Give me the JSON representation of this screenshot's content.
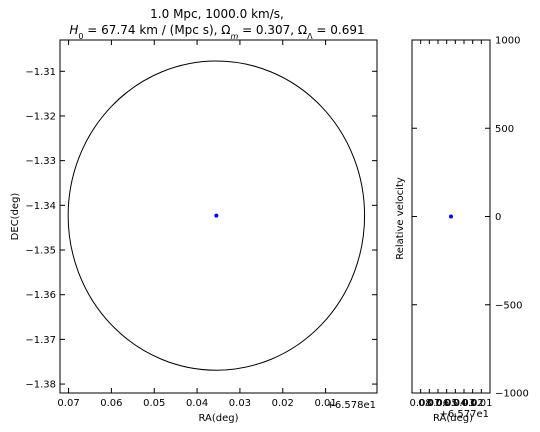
{
  "title": {
    "line1": "1.0 Mpc, 1000.0 km/s,",
    "line2_parts": [
      {
        "t": "H",
        "i": true
      },
      {
        "t": "0",
        "sub": true
      },
      {
        "t": " = 67.74 km / (Mpc s), "
      },
      {
        "t": "Ω",
        "i": false
      },
      {
        "t": "m",
        "sub": true,
        "i": true
      },
      {
        "t": " = 0.307, "
      },
      {
        "t": "Ω",
        "i": false
      },
      {
        "t": "Λ",
        "sub": true
      },
      {
        "t": " = 0.691"
      }
    ]
  },
  "chart_data": [
    {
      "type": "scatter",
      "name": "sky-position",
      "xlabel": "RA(deg)",
      "ylabel": "DEC(deg)",
      "x_offset_label": "+6.578e1",
      "xlim": [
        0.072,
        -0.002
      ],
      "ylim": [
        -1.382,
        -1.303
      ],
      "x_ticks": [
        0.07,
        0.06,
        0.05,
        0.04,
        0.03,
        0.02,
        0.01
      ],
      "x_tick_labels": [
        "0.07",
        "0.06",
        "0.05",
        "0.04",
        "0.03",
        "0.02",
        "0.01"
      ],
      "y_ticks": [
        -1.31,
        -1.32,
        -1.33,
        -1.34,
        -1.35,
        -1.36,
        -1.37,
        -1.38
      ],
      "y_tick_labels": [
        "−1.31",
        "−1.32",
        "−1.33",
        "−1.34",
        "−1.35",
        "−1.36",
        "−1.37",
        "−1.38"
      ],
      "points": [
        {
          "x": 0.0355,
          "y": -1.3423
        }
      ],
      "circle": {
        "cx": 0.0355,
        "cy": -1.3423,
        "r": 0.0346
      },
      "point_color": "#0000ff",
      "circle_color": "#000000",
      "grid": false
    },
    {
      "type": "scatter",
      "name": "velocity",
      "xlabel": "RA(deg)",
      "ylabel": "Relative velocity",
      "x_offset_label": "+6.577e1",
      "xlim": [
        0.09,
        0.0
      ],
      "ylim": [
        -1000,
        1000
      ],
      "x_tick_labels": [
        "0.08",
        "0.07",
        "0.06",
        "0.05",
        "0.04",
        "0.03",
        "0.02",
        "0.01"
      ],
      "y_ticks": [
        1000,
        500,
        0,
        -500,
        -1000
      ],
      "y_tick_labels": [
        "1000",
        "500",
        "0",
        "−500",
        "−1000"
      ],
      "points": [
        {
          "x": 0.045,
          "y": 0
        }
      ],
      "point_color": "#0000ff",
      "grid": false
    }
  ]
}
